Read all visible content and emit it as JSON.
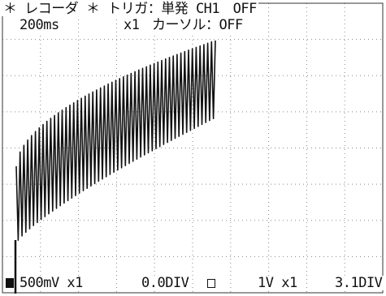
{
  "header": {
    "status_line": "＊ レコーダ ＊ トリガ：単発 CH1　OFF",
    "timebase": "200ms",
    "zoom": "x1",
    "cursor": "カーソル：OFF"
  },
  "footer": {
    "ch1_volts": "500mV x1",
    "ch1_position": "0.0DIV",
    "ch2_volts": "1V x1",
    "ch2_position": "3.1DIV"
  },
  "colors": {
    "trace": "#111111",
    "grid": "#888888",
    "background": "#ffffff"
  },
  "icons": {
    "ch1": "filled-square-icon",
    "ch2": "hollow-square-icon"
  }
}
